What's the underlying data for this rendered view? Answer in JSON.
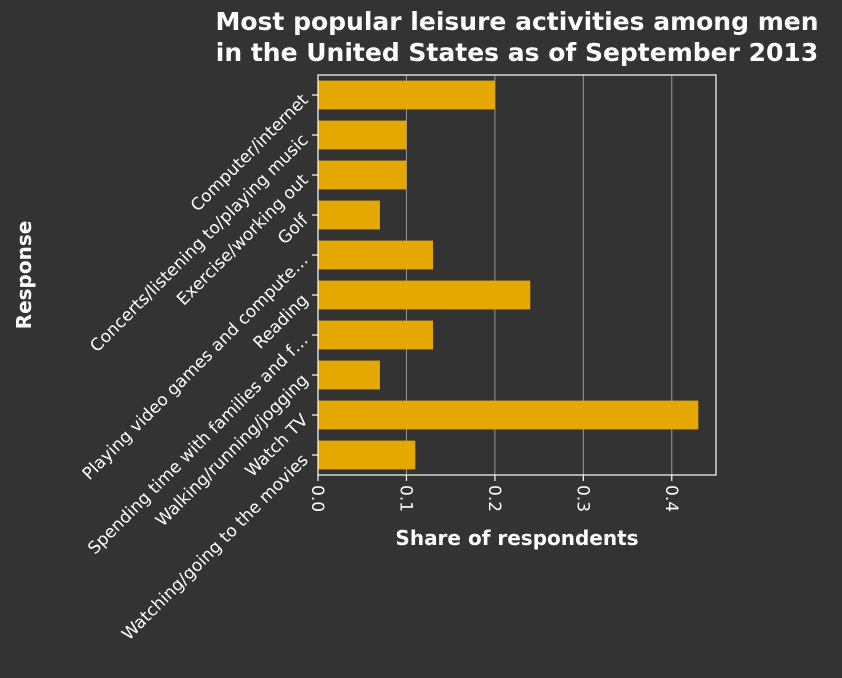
{
  "chart_data": {
    "type": "bar",
    "orientation": "horizontal",
    "title_lines": [
      "Most popular leisure activities among men",
      "in the United States as of September 2013"
    ],
    "xlabel": "Share of respondents",
    "ylabel": "Response",
    "categories": [
      "Computer/internet",
      "Concerts/listening to/playing music",
      "Exercise/working out",
      "Golf",
      "Playing video games and compute…",
      "Reading",
      "Spending time with families and f…",
      "Walking/running/jogging",
      "Watch TV",
      "Watching/going to the movies"
    ],
    "values": [
      0.2,
      0.1,
      0.1,
      0.07,
      0.13,
      0.24,
      0.13,
      0.07,
      0.43,
      0.11
    ],
    "xlim": [
      0,
      0.45
    ],
    "xticks": [
      0.0,
      0.1,
      0.2,
      0.3,
      0.4
    ],
    "xtick_labels": [
      "0.0",
      "0.1",
      "0.2",
      "0.3",
      "0.4"
    ],
    "grid": "vertical",
    "legend": "none",
    "colors": {
      "background": "#333333",
      "bar": "#e5a800",
      "axis": "#ffffff",
      "grid": "#9a9a9a",
      "text": "#ffffff"
    }
  }
}
